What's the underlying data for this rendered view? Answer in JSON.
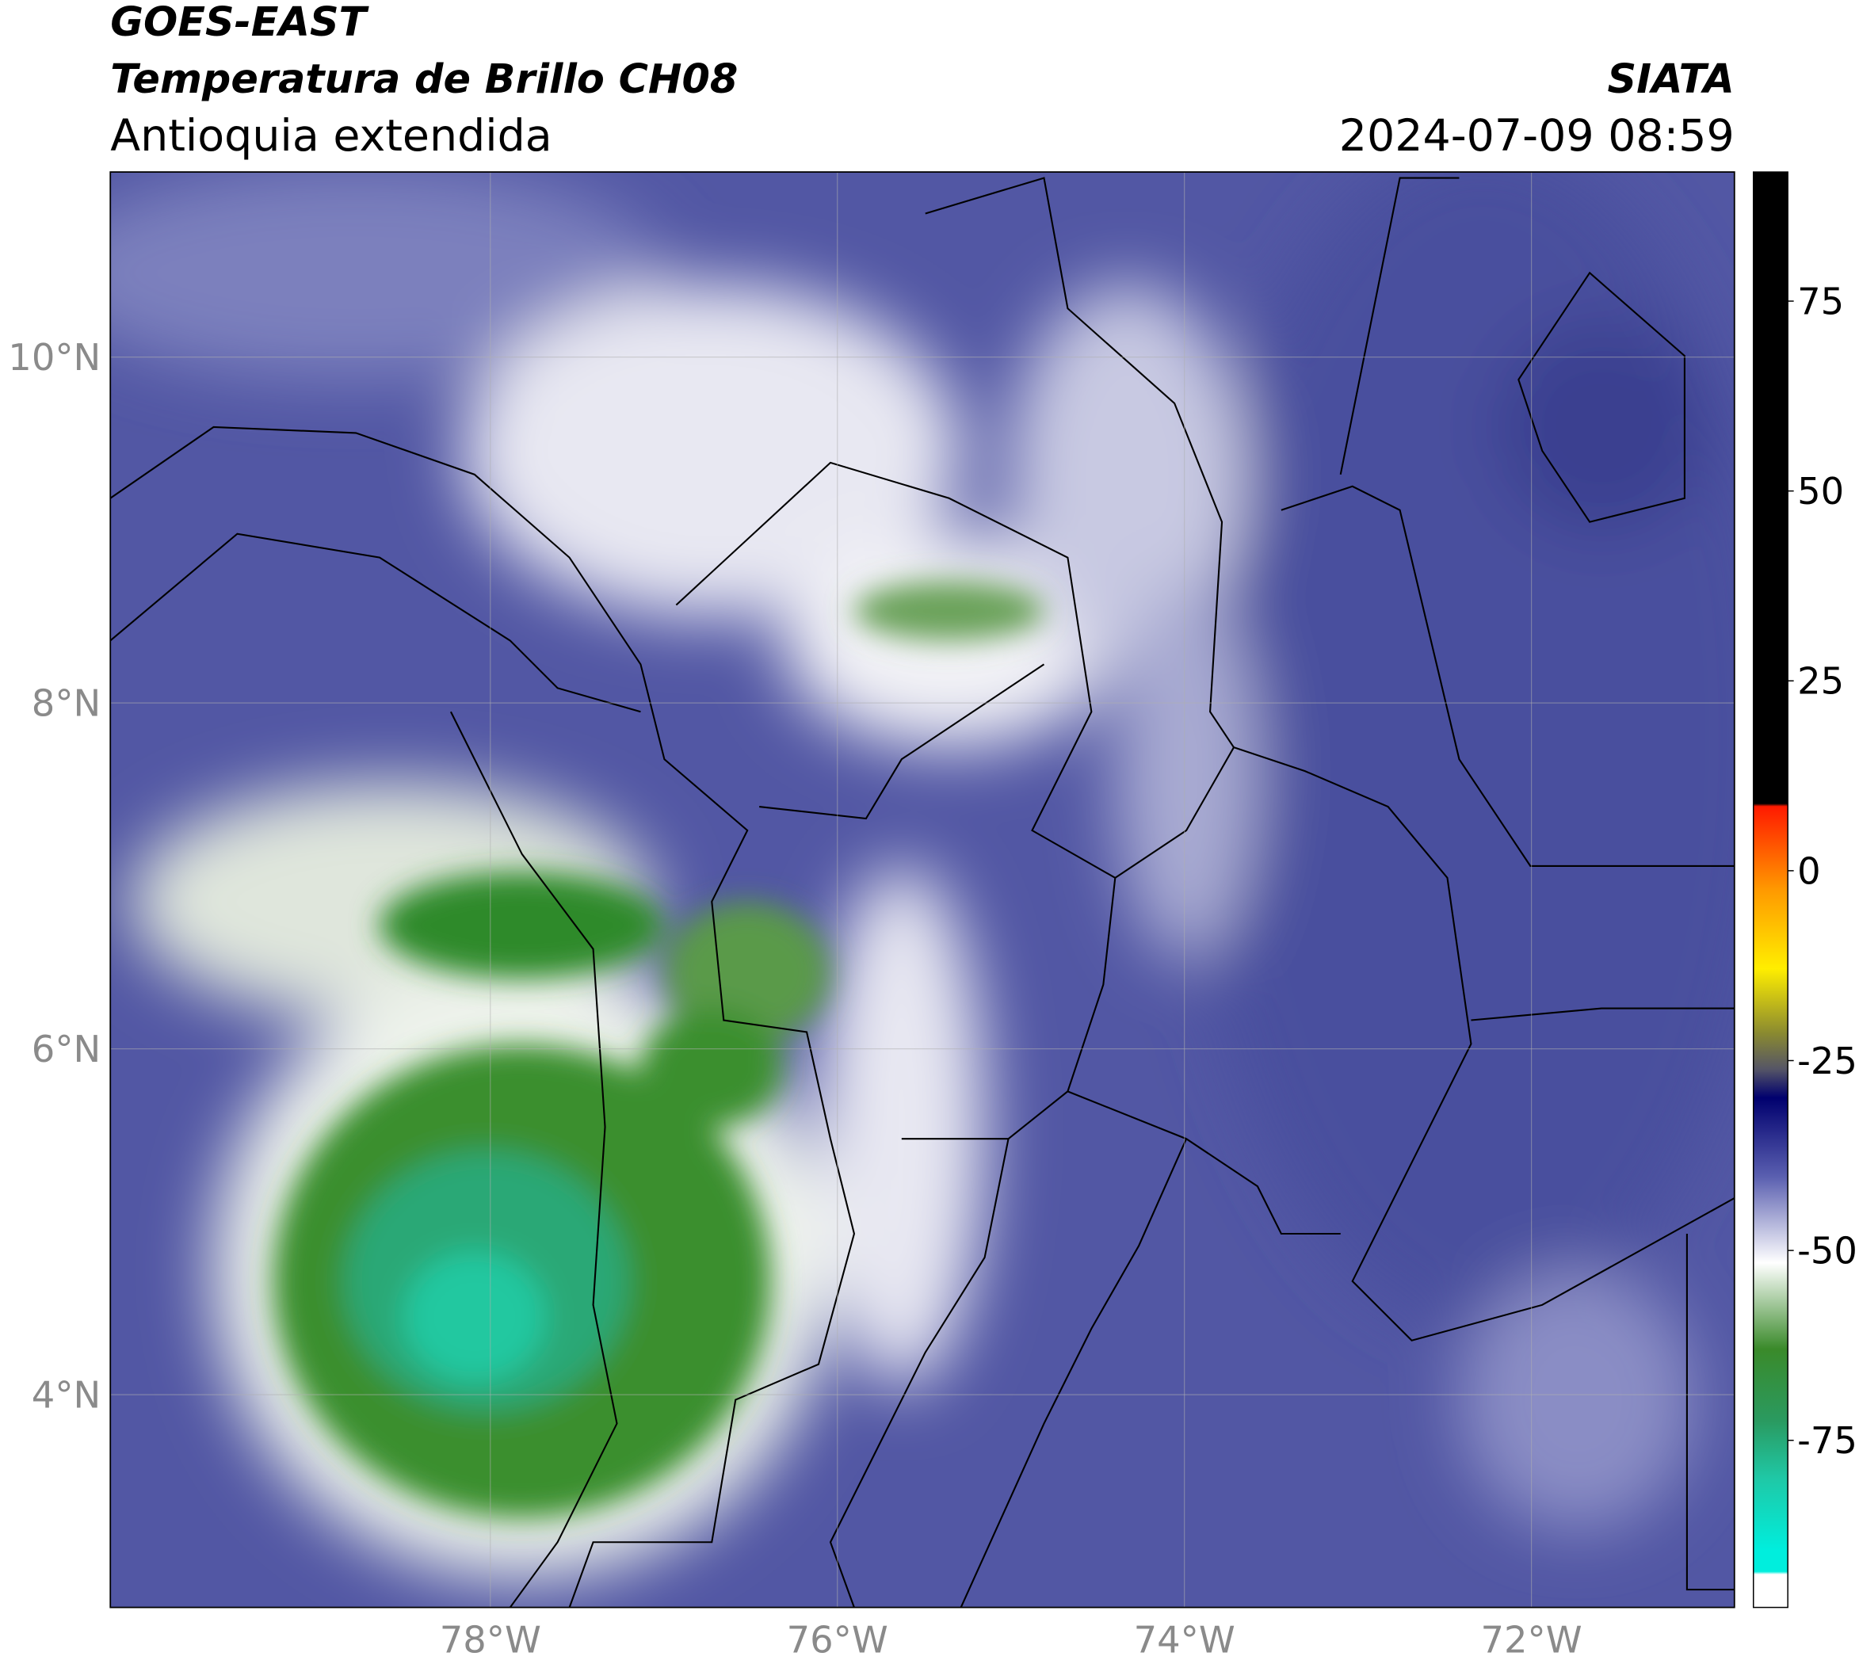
{
  "header": {
    "title": "GOES-EAST",
    "subtitle": "Temperatura de Brillo CH08",
    "region": "Antioquia extendida",
    "source": "SIATA",
    "datetime": "2024-07-09 08:59"
  },
  "map": {
    "xlim": [
      -80.19,
      -70.83
    ],
    "ylim": [
      2.77,
      11.07
    ],
    "xticks": [
      {
        "value": -78,
        "label": "78°W"
      },
      {
        "value": -76,
        "label": "76°W"
      },
      {
        "value": -74,
        "label": "74°W"
      },
      {
        "value": -72,
        "label": "72°W"
      }
    ],
    "yticks": [
      {
        "value": 4,
        "label": "4°N"
      },
      {
        "value": 6,
        "label": "6°N"
      },
      {
        "value": 8,
        "label": "8°N"
      },
      {
        "value": 10,
        "label": "10°N"
      }
    ],
    "grid": true
  },
  "colorbar": {
    "clim": [
      -97,
      92
    ],
    "ticks": [
      -75,
      -50,
      -25,
      0,
      25,
      50,
      75
    ]
  }
}
